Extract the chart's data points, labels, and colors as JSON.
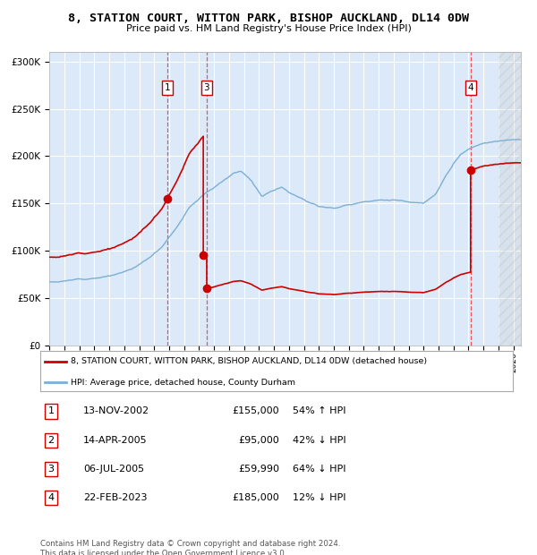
{
  "title": "8, STATION COURT, WITTON PARK, BISHOP AUCKLAND, DL14 0DW",
  "subtitle": "Price paid vs. HM Land Registry's House Price Index (HPI)",
  "legend_line1": "8, STATION COURT, WITTON PARK, BISHOP AUCKLAND, DL14 0DW (detached house)",
  "legend_line2": "HPI: Average price, detached house, County Durham",
  "footer1": "Contains HM Land Registry data © Crown copyright and database right 2024.",
  "footer2": "This data is licensed under the Open Government Licence v3.0.",
  "sales": [
    {
      "num": 1,
      "date": "13-NOV-2002",
      "price": 155000,
      "pct": "54%",
      "dir": "↑"
    },
    {
      "num": 2,
      "date": "14-APR-2005",
      "price": 95000,
      "pct": "42%",
      "dir": "↓"
    },
    {
      "num": 3,
      "date": "06-JUL-2005",
      "price": 59990,
      "pct": "64%",
      "dir": "↓"
    },
    {
      "num": 4,
      "date": "22-FEB-2023",
      "price": 185000,
      "pct": "12%",
      "dir": "↓"
    }
  ],
  "sale_dates_decimal": [
    2002.87,
    2005.28,
    2005.51,
    2023.14
  ],
  "sale_prices": [
    155000,
    95000,
    59990,
    185000
  ],
  "ylim": [
    0,
    310000
  ],
  "xlim_start": 1995.0,
  "xlim_end": 2026.5,
  "hatch_start": 2025.0,
  "bg_color": "#dce9f8",
  "plot_bg": "#dce9f8",
  "red_color": "#cc0000",
  "blue_color": "#7bafd4",
  "grid_color": "#ffffff",
  "dashed_line_color": "#ee4444",
  "hpi_key_points": [
    [
      1995.0,
      67000
    ],
    [
      1996.0,
      68000
    ],
    [
      1997.0,
      70000
    ],
    [
      1998.5,
      74000
    ],
    [
      1999.5,
      77000
    ],
    [
      2000.5,
      82000
    ],
    [
      2001.5,
      92000
    ],
    [
      2002.5,
      106000
    ],
    [
      2003.5,
      128000
    ],
    [
      2004.3,
      148000
    ],
    [
      2005.0,
      158000
    ],
    [
      2005.5,
      165000
    ],
    [
      2007.3,
      185000
    ],
    [
      2007.8,
      188000
    ],
    [
      2008.5,
      178000
    ],
    [
      2009.2,
      162000
    ],
    [
      2009.8,
      168000
    ],
    [
      2010.5,
      173000
    ],
    [
      2011.0,
      168000
    ],
    [
      2011.8,
      163000
    ],
    [
      2012.5,
      157000
    ],
    [
      2013.0,
      154000
    ],
    [
      2014.0,
      153000
    ],
    [
      2015.0,
      156000
    ],
    [
      2016.0,
      160000
    ],
    [
      2017.0,
      163000
    ],
    [
      2018.0,
      163000
    ],
    [
      2019.0,
      161000
    ],
    [
      2020.0,
      160000
    ],
    [
      2020.8,
      168000
    ],
    [
      2021.5,
      188000
    ],
    [
      2022.0,
      200000
    ],
    [
      2022.5,
      210000
    ],
    [
      2023.0,
      215000
    ],
    [
      2023.5,
      218000
    ],
    [
      2024.0,
      220000
    ],
    [
      2025.0,
      222000
    ],
    [
      2026.5,
      225000
    ]
  ]
}
